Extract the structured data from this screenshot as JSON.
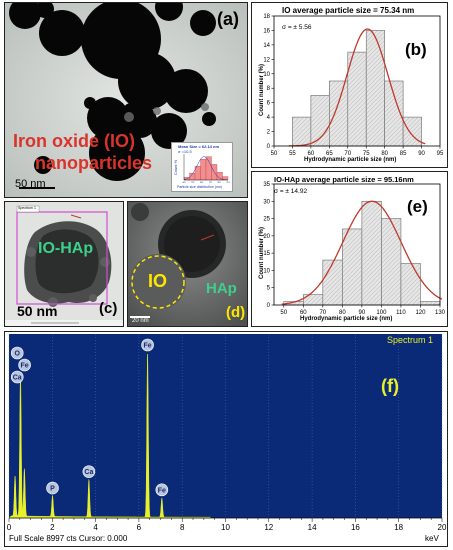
{
  "panel_a": {
    "label": "(a)",
    "title_line1": "Iron oxide (IO)",
    "title_line2": "nanoparticles",
    "scale": "50 nm",
    "inset": {
      "mean_text": "Mean Size = 62.14 nm",
      "sigma_text": "σ =10.5",
      "ylabel": "Count %",
      "xlabel": "Particle size distribution (nm)",
      "ticks": [
        "40",
        "50",
        "60",
        "70",
        "80",
        "90"
      ],
      "values": [
        3,
        8,
        16,
        24,
        27,
        18,
        9,
        4
      ]
    }
  },
  "panel_b": {
    "label": "(b)",
    "title": "IO average particle size = 75.34 nm",
    "sigma": "σ = ± 5.56",
    "xlabel": "Hydrodynamic particle size (nm)",
    "ylabel": "Count number (%)"
  },
  "panel_c": {
    "label": "(c)",
    "text": "IO-HAp",
    "scale": "50 nm",
    "tag": "Spectrum 1"
  },
  "panel_d": {
    "label": "(d)",
    "io_text": "IO",
    "hap_text": "HAp",
    "scale": "20 nm"
  },
  "panel_e": {
    "label": "(e)",
    "title": "IO-HAp average particle size = 95.16nm",
    "sigma": "σ = ± 14.92",
    "xlabel": "Hydrodynamic particle size (nm)",
    "ylabel": "Count number (%)"
  },
  "panel_f": {
    "label": "(f)",
    "spectrum_label": "Spectrum 1",
    "footer": "Full Scale 8997 cts Cursor: 0.000",
    "unit": "keV",
    "peak_labels": [
      "O",
      "Fe",
      "Ca",
      "P",
      "Ca",
      "Fe",
      "Fe"
    ]
  },
  "chart_data": [
    {
      "id": "b",
      "type": "bar",
      "title": "IO average particle size = 75.34 nm",
      "xlabel": "Hydrodynamic particle size (nm)",
      "ylabel": "Count number (%)",
      "xlim": [
        50,
        95
      ],
      "ylim": [
        0,
        18
      ],
      "xticks": [
        50,
        55,
        60,
        65,
        70,
        75,
        80,
        85,
        90,
        95
      ],
      "yticks": [
        0,
        2,
        4,
        6,
        8,
        10,
        12,
        14,
        16,
        18
      ],
      "bins": [
        [
          55,
          60
        ],
        [
          60,
          65
        ],
        [
          65,
          70
        ],
        [
          70,
          75
        ],
        [
          75,
          80
        ],
        [
          80,
          85
        ],
        [
          85,
          90
        ]
      ],
      "values": [
        4,
        7,
        9,
        13,
        16,
        9,
        4
      ],
      "fit_curve": "gaussian",
      "fit_mean": 75.34,
      "fit_sigma": 5.56,
      "fit_peak": 16.2,
      "colors": {
        "bar_fill": "#e6e6e6",
        "curve": "#c0392b"
      }
    },
    {
      "id": "e",
      "type": "bar",
      "title": "IO-HAp average particle size = 95.16nm",
      "xlabel": "Hydrodynamic particle size (nm)",
      "ylabel": "Count number (%)",
      "xlim": [
        45,
        130
      ],
      "ylim": [
        0,
        35
      ],
      "xticks": [
        50,
        60,
        70,
        80,
        90,
        100,
        110,
        120,
        130
      ],
      "yticks": [
        0,
        5,
        10,
        15,
        20,
        25,
        30,
        35
      ],
      "bins": [
        [
          50,
          60
        ],
        [
          60,
          70
        ],
        [
          70,
          80
        ],
        [
          80,
          90
        ],
        [
          90,
          100
        ],
        [
          100,
          110
        ],
        [
          110,
          120
        ],
        [
          120,
          130
        ]
      ],
      "values": [
        1,
        3,
        13,
        22,
        30,
        25,
        12,
        1
      ],
      "fit_curve": "gaussian",
      "fit_mean": 95.16,
      "fit_sigma": 14.92,
      "fit_peak": 30,
      "colors": {
        "bar_fill": "#e6e6e6",
        "curve": "#c0392b"
      }
    },
    {
      "id": "f",
      "type": "line",
      "title": "",
      "xlabel": "keV",
      "xlim": [
        0,
        20
      ],
      "xticks": [
        0,
        2,
        4,
        6,
        8,
        10,
        12,
        14,
        16,
        18,
        20
      ],
      "peaks": [
        {
          "x": 0.28,
          "y": 2200
        },
        {
          "x": 0.53,
          "y": 7900
        },
        {
          "x": 0.71,
          "y": 2600
        },
        {
          "x": 2.01,
          "y": 1150
        },
        {
          "x": 3.69,
          "y": 2050
        },
        {
          "x": 6.4,
          "y": 8997
        },
        {
          "x": 7.06,
          "y": 1050
        }
      ],
      "full_scale": 8997,
      "colors": {
        "background": "#0a2a78",
        "spectrum": "#e8f02a",
        "grid": "#6a7fb3",
        "marker": "#b9c4e0"
      }
    }
  ]
}
